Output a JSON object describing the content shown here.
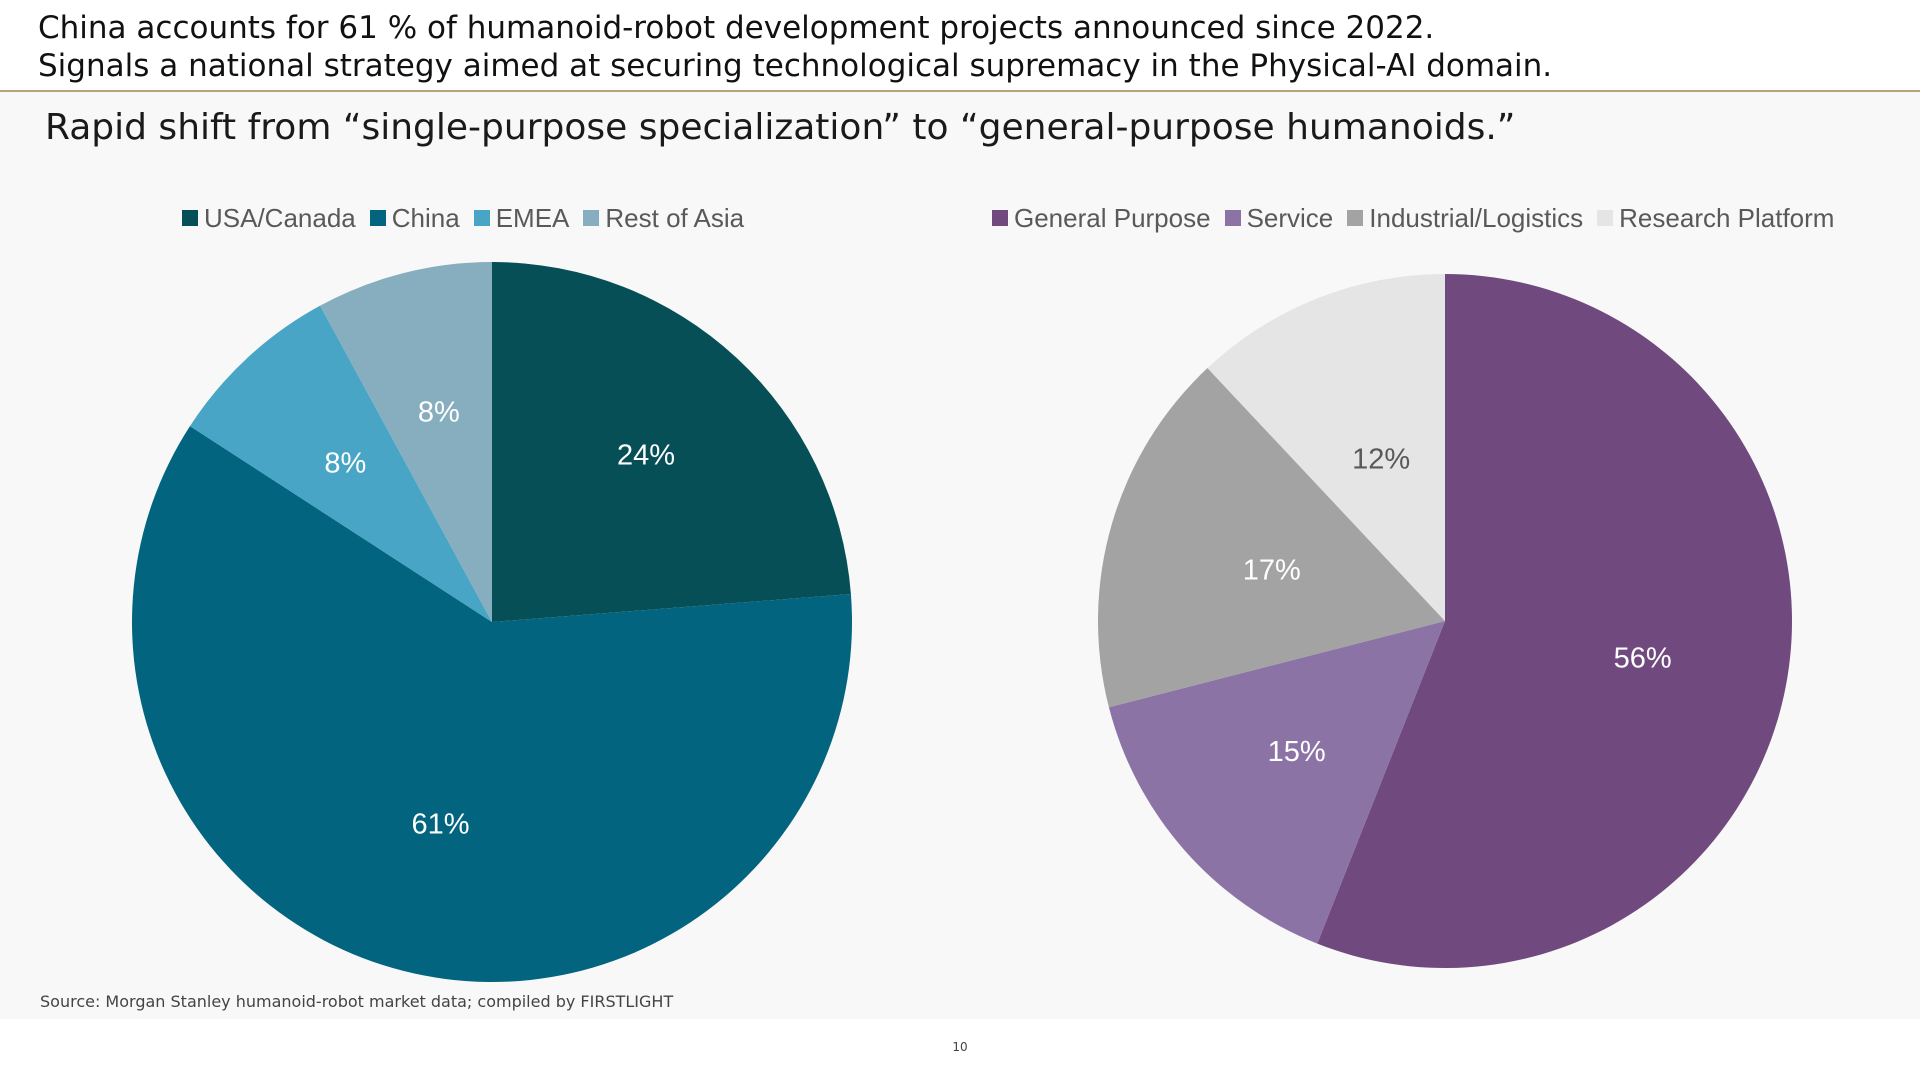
{
  "header": {
    "line1": "China accounts for 61 % of humanoid-robot development projects announced since 2022.",
    "line2": "Signals a national strategy aimed at securing technological supremacy in the Physical-AI domain."
  },
  "subtitle": "Rapid shift from “single-purpose specialization” to “general-purpose humanoids.”",
  "chart_data": [
    {
      "type": "pie",
      "title": "",
      "legend_position": "top",
      "start_angle_deg": 0,
      "direction": "clockwise",
      "series": [
        {
          "name": "USA/Canada",
          "value": 24,
          "label": "24%",
          "color": "#064f56",
          "label_color": "#ffffff"
        },
        {
          "name": "China",
          "value": 61,
          "label": "61%",
          "color": "#02647e",
          "label_color": "#ffffff"
        },
        {
          "name": "EMEA",
          "value": 8,
          "label": "8%",
          "color": "#48a5c5",
          "label_color": "#ffffff"
        },
        {
          "name": "Rest of Asia",
          "value": 8,
          "label": "8%",
          "color": "#87aebf",
          "label_color": "#ffffff"
        }
      ]
    },
    {
      "type": "pie",
      "title": "",
      "legend_position": "top",
      "start_angle_deg": 0,
      "direction": "clockwise",
      "series": [
        {
          "name": "General Purpose",
          "value": 56,
          "label": "56%",
          "color": "#704a7e",
          "label_color": "#ffffff"
        },
        {
          "name": "Service",
          "value": 15,
          "label": "15%",
          "color": "#8c73a6",
          "label_color": "#ffffff"
        },
        {
          "name": "Industrial/Logistics",
          "value": 17,
          "label": "17%",
          "color": "#a3a3a3",
          "label_color": "#ffffff"
        },
        {
          "name": "Research Platform",
          "value": 12,
          "label": "12%",
          "color": "#e5e5e5",
          "label_color": "#595959"
        }
      ]
    }
  ],
  "source": "Source: Morgan Stanley humanoid-robot market data; compiled by FIRSTLIGHT",
  "page_number": "10"
}
